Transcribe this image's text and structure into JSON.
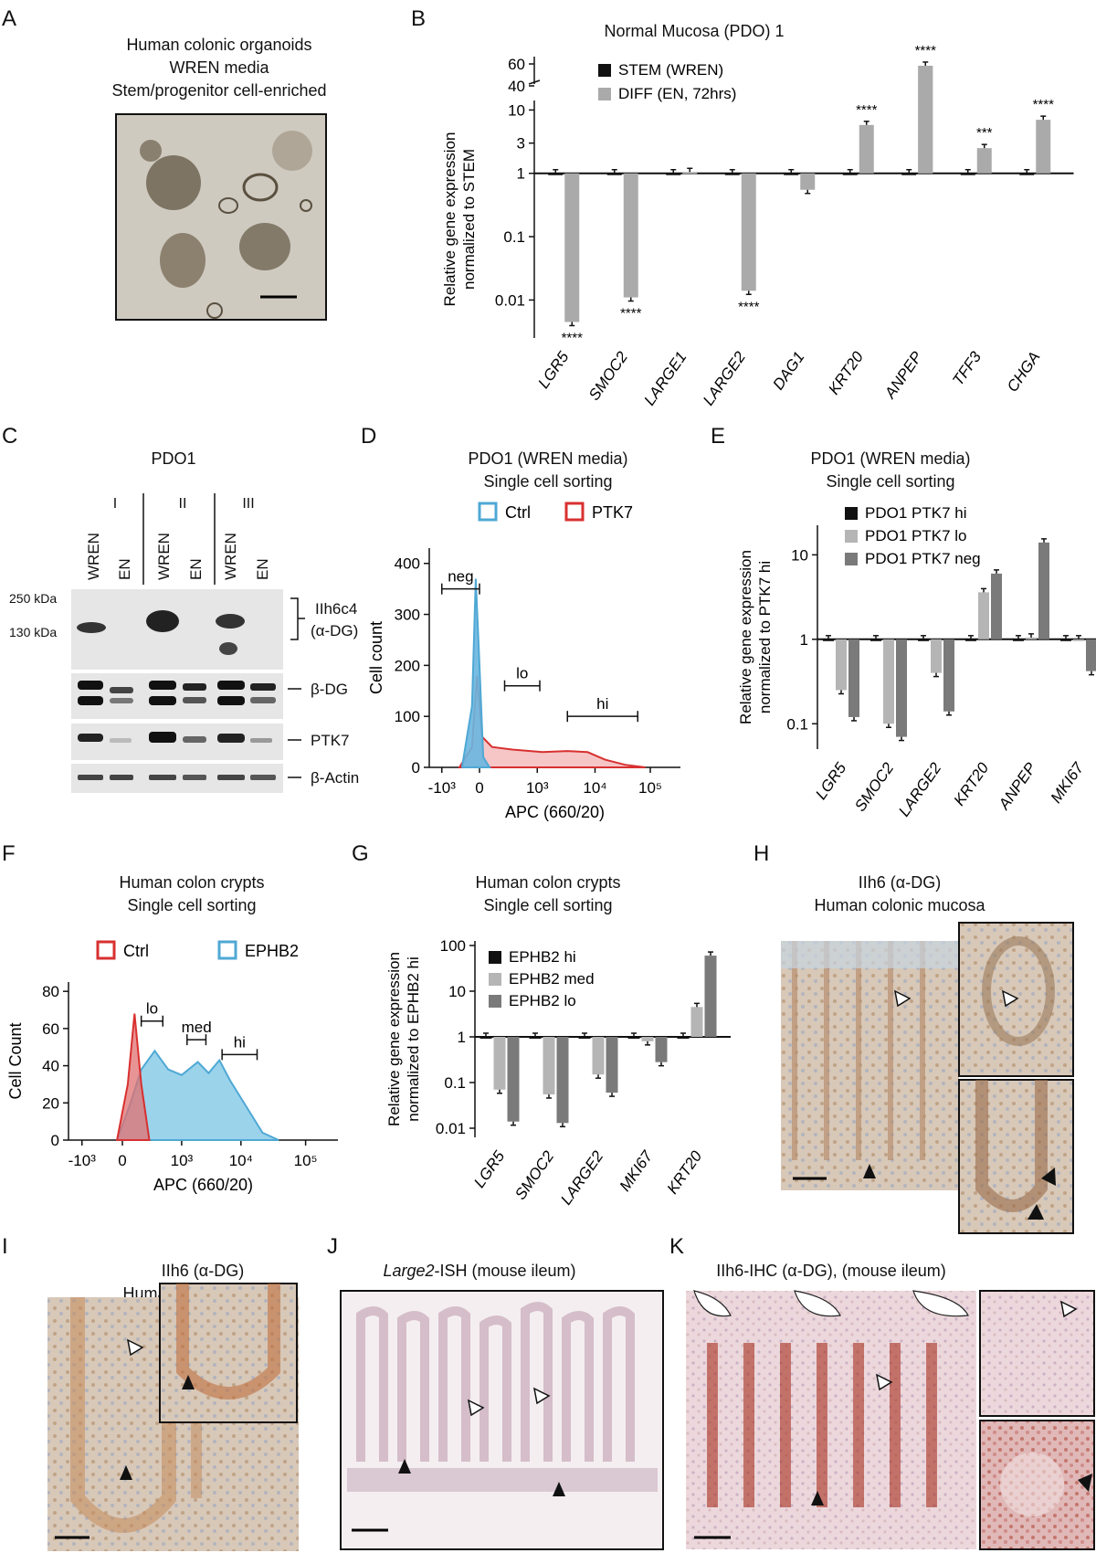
{
  "panels": {
    "A": {
      "letter": "A",
      "title": [
        "Human colonic organoids",
        "WREN media",
        "Stem/progenitor cell-enriched"
      ]
    },
    "B": {
      "letter": "B",
      "title": "Normal Mucosa (PDO) 1"
    },
    "C": {
      "letter": "C",
      "title": "PDO1",
      "groups": [
        "I",
        "II",
        "III"
      ],
      "lanes": [
        "WREN",
        "EN",
        "WREN",
        "EN",
        "WREN",
        "EN"
      ],
      "mw": [
        "250 kDa",
        "130 kDa"
      ],
      "bands": [
        "IIh6c4",
        "(α-DG)",
        "β-DG",
        "PTK7",
        "β-Actin"
      ]
    },
    "D": {
      "letter": "D",
      "title": [
        "PDO1 (WREN media)",
        "Single cell sorting"
      ]
    },
    "E": {
      "letter": "E",
      "title": [
        "PDO1 (WREN media)",
        "Single cell sorting"
      ]
    },
    "F": {
      "letter": "F",
      "title": [
        "Human colon crypts",
        "Single cell sorting"
      ]
    },
    "G": {
      "letter": "G",
      "title": [
        "Human colon crypts",
        "Single cell sorting"
      ]
    },
    "H": {
      "letter": "H",
      "title": [
        "IIh6 (α-DG)",
        "Human colonic mucosa"
      ]
    },
    "I": {
      "letter": "I",
      "title": [
        "IIh6 (α-DG)",
        "Human rectal mucosa"
      ]
    },
    "J": {
      "letter": "J",
      "title_italic": "Large2",
      "title_rest": "-ISH (mouse ileum)"
    },
    "K": {
      "letter": "K",
      "title": "IIh6-IHC (α-DG), (mouse ileum)"
    }
  },
  "chart_data": [
    {
      "panel": "B",
      "type": "bar",
      "scale": "log",
      "ylabel": [
        "Relative gene expression",
        "normalized to STEM"
      ],
      "categories": [
        "LGR5",
        "SMOC2",
        "LARGE1",
        "LARGE2",
        "DAG1",
        "KRT20",
        "ANPEP",
        "TFF3",
        "CHGA"
      ],
      "series": [
        {
          "name": "STEM (WREN)",
          "color": "#111111",
          "values": [
            1,
            1,
            1,
            1,
            1,
            1,
            1,
            1,
            1
          ]
        },
        {
          "name": "DIFF (EN, 72hrs)",
          "color": "#aaaaaa",
          "values": [
            0.0045,
            0.011,
            1.05,
            0.014,
            0.55,
            5.8,
            50,
            2.5,
            7
          ]
        }
      ],
      "significance": [
        "****",
        "****",
        "",
        "****",
        "",
        "****",
        "****",
        "***",
        "****"
      ],
      "ytick_labels": [
        "0.01",
        "0.1",
        "1",
        "3",
        "10",
        "40",
        "60"
      ]
    },
    {
      "panel": "D",
      "type": "histogram",
      "xlabel": "APC (660/20)",
      "ylabel": "Cell count",
      "xtick_labels": [
        "-10³",
        "0",
        "10³",
        "10⁴",
        "10⁵"
      ],
      "ytick_labels": [
        "0",
        "100",
        "200",
        "300",
        "400"
      ],
      "legend": [
        {
          "name": "Ctrl",
          "color": "#4fa8d4"
        },
        {
          "name": "PTK7",
          "color": "#d83030"
        }
      ],
      "gates": [
        "neg",
        "lo",
        "hi"
      ]
    },
    {
      "panel": "E",
      "type": "bar",
      "scale": "log",
      "ylabel": [
        "Relative gene expression",
        "normalized to PTK7 hi"
      ],
      "categories": [
        "LGR5",
        "SMOC2",
        "LARGE2",
        "KRT20",
        "ANPEP",
        "MKI67"
      ],
      "series": [
        {
          "name": "PDO1 PTK7 hi",
          "color": "#111111",
          "values": [
            1,
            1,
            1,
            1,
            1,
            1
          ]
        },
        {
          "name": "PDO1 PTK7 lo",
          "color": "#b5b5b5",
          "values": [
            0.25,
            0.1,
            0.4,
            3.6,
            1.05,
            1
          ]
        },
        {
          "name": "PDO1 PTK7 neg",
          "color": "#7a7a7a",
          "values": [
            0.12,
            0.07,
            0.14,
            6,
            14,
            0.42
          ]
        }
      ],
      "ytick_labels": [
        "0.1",
        "1",
        "10"
      ]
    },
    {
      "panel": "F",
      "type": "histogram",
      "xlabel": "APC (660/20)",
      "ylabel": "Cell Count",
      "xtick_labels": [
        "-10³",
        "0",
        "10³",
        "10⁴",
        "10⁵"
      ],
      "ytick_labels": [
        "0",
        "20",
        "40",
        "60",
        "80"
      ],
      "legend": [
        {
          "name": "Ctrl",
          "color": "#d83030"
        },
        {
          "name": "EPHB2",
          "color": "#4fa8d4"
        }
      ],
      "gates": [
        "lo",
        "med",
        "hi"
      ]
    },
    {
      "panel": "G",
      "type": "bar",
      "scale": "log",
      "ylabel": [
        "Relative gene expression",
        "normalized to EPHB2 hi"
      ],
      "categories": [
        "LGR5",
        "SMOC2",
        "LARGE2",
        "MKI67",
        "KRT20"
      ],
      "series": [
        {
          "name": "EPHB2 hi",
          "color": "#111111",
          "values": [
            1,
            1,
            1,
            1,
            1
          ]
        },
        {
          "name": "EPHB2 med",
          "color": "#b5b5b5",
          "values": [
            0.07,
            0.055,
            0.15,
            0.8,
            4.5
          ]
        },
        {
          "name": "EPHB2 lo",
          "color": "#7a7a7a",
          "values": [
            0.014,
            0.013,
            0.06,
            0.28,
            60
          ]
        }
      ],
      "ytick_labels": [
        "0.01",
        "0.1",
        "1",
        "10",
        "100"
      ]
    }
  ]
}
